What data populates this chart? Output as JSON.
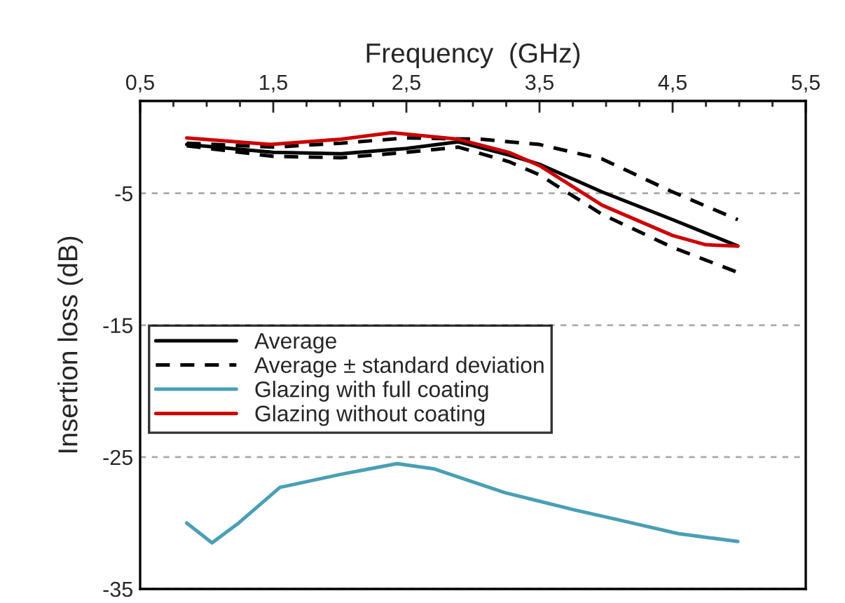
{
  "chart_data": {
    "type": "line",
    "xlabel": "Frequency  (GHz)",
    "ylabel": "Insertion loss (dB)",
    "xlim": [
      0.5,
      5.5
    ],
    "xticks": [
      {
        "value": 0.5,
        "label": "0,5"
      },
      {
        "value": 1.5,
        "label": "1,5"
      },
      {
        "value": 2.5,
        "label": "2,5"
      },
      {
        "value": 3.5,
        "label": "3,5"
      },
      {
        "value": 4.5,
        "label": "4,5"
      },
      {
        "value": 5.5,
        "label": "5,5"
      }
    ],
    "ylim": [
      -35,
      2
    ],
    "yticks": [
      -35,
      -25,
      -15,
      -5
    ],
    "grid": "y",
    "legend": "center left",
    "line_style": "solid",
    "marker": "none",
    "series": [
      {
        "name": "Average",
        "color": "#000000",
        "x": [
          0.85,
          1.5,
          2.01,
          2.5,
          2.89,
          3.27,
          3.5,
          3.97,
          4.5,
          4.99
        ],
        "values": [
          -1.3,
          -1.9,
          -2.0,
          -1.6,
          -1.1,
          -2.1,
          -2.8,
          -4.9,
          -7.0,
          -9.0
        ]
      },
      {
        "name": "Average ± standard deviation",
        "color": "#000000",
        "line_style": "dashed",
        "x": [
          0.85,
          1.5,
          2.01,
          2.5,
          3.06,
          3.5,
          3.97,
          4.5,
          4.99
        ],
        "values": [
          -1.2,
          -1.5,
          -1.2,
          -0.8,
          -0.9,
          -1.3,
          -2.4,
          -4.9,
          -7.0
        ]
      },
      {
        "color": "#000000",
        "line_style": "dashed",
        "x": [
          0.85,
          1.5,
          2.01,
          2.5,
          2.89,
          3.27,
          3.5,
          3.97,
          4.5,
          4.99
        ],
        "values": [
          -1.4,
          -2.2,
          -2.3,
          -1.9,
          -1.5,
          -2.6,
          -3.6,
          -6.6,
          -9.1,
          -11.0
        ]
      },
      {
        "name": "Glazing with full coating",
        "color": "#4a9fb5",
        "x": [
          0.85,
          1.04,
          1.24,
          1.55,
          2.01,
          2.43,
          2.71,
          3.24,
          3.76,
          4.11,
          4.54,
          4.99
        ],
        "values": [
          -30.0,
          -31.5,
          -30.0,
          -27.3,
          -26.3,
          -25.5,
          -25.9,
          -27.7,
          -29.0,
          -29.8,
          -30.8,
          -31.4
        ]
      },
      {
        "name": "Glazing without coating",
        "color": "#cc0000",
        "x": [
          0.85,
          1.48,
          2.01,
          2.39,
          2.89,
          3.27,
          3.5,
          3.97,
          4.5,
          4.75,
          4.99
        ],
        "values": [
          -0.8,
          -1.3,
          -0.9,
          -0.4,
          -0.9,
          -1.9,
          -2.9,
          -5.9,
          -8.2,
          -8.9,
          -9.0
        ]
      }
    ]
  }
}
